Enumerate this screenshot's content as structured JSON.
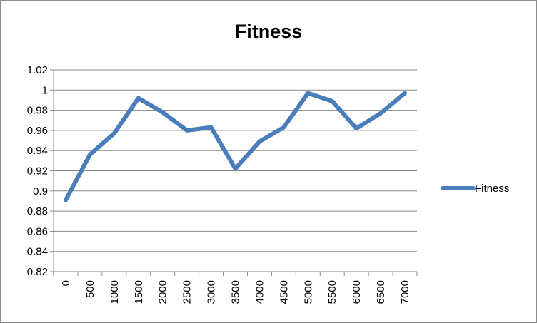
{
  "chart_data": {
    "type": "line",
    "title": "Fitness",
    "xlabel": "",
    "ylabel": "",
    "categories": [
      "0",
      "500",
      "1000",
      "1500",
      "2000",
      "2500",
      "3000",
      "3500",
      "4000",
      "4500",
      "5000",
      "5500",
      "6000",
      "6500",
      "7000"
    ],
    "series": [
      {
        "name": "Fitness",
        "color": "#4a7ebb",
        "values": [
          0.891,
          0.936,
          0.957,
          0.992,
          0.978,
          0.96,
          0.963,
          0.922,
          0.949,
          0.963,
          0.997,
          0.989,
          0.962,
          0.977,
          0.997
        ]
      }
    ],
    "ylim": [
      0.82,
      1.02
    ],
    "yticks": [
      "0.82",
      "0.84",
      "0.86",
      "0.88",
      "0.9",
      "0.92",
      "0.94",
      "0.96",
      "0.98",
      "1",
      "1.02"
    ],
    "grid": true,
    "legend": "right"
  }
}
